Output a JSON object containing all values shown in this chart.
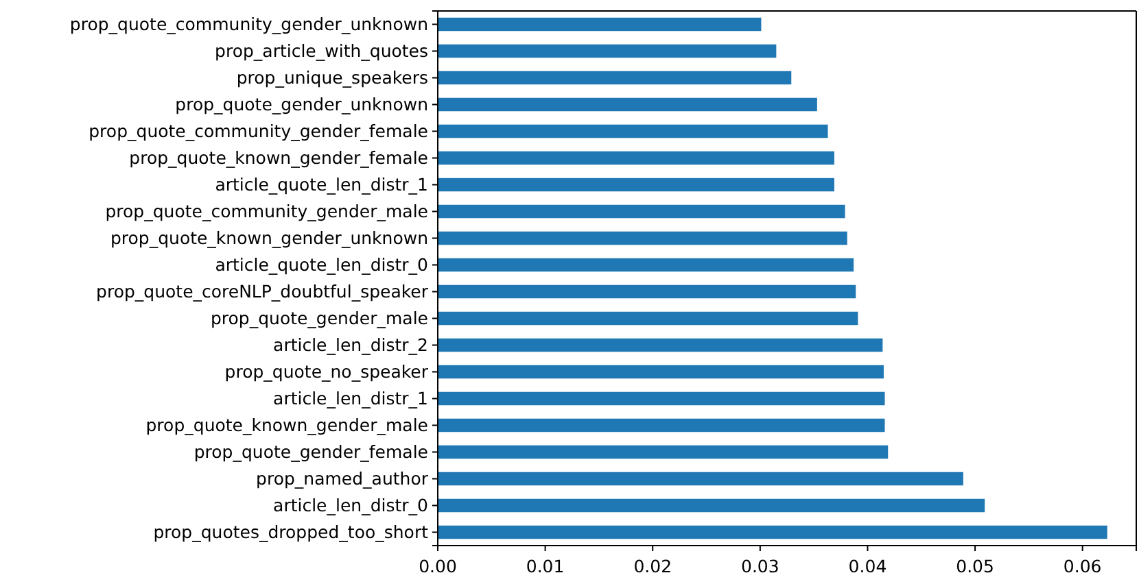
{
  "chart_data": {
    "type": "bar",
    "orientation": "horizontal",
    "categories": [
      "prop_quote_community_gender_unknown",
      "prop_article_with_quotes",
      "prop_unique_speakers",
      "prop_quote_gender_unknown",
      "prop_quote_community_gender_female",
      "prop_quote_known_gender_female",
      "article_quote_len_distr_1",
      "prop_quote_community_gender_male",
      "prop_quote_known_gender_unknown",
      "article_quote_len_distr_0",
      "prop_quote_coreNLP_doubtful_speaker",
      "prop_quote_gender_male",
      "article_len_distr_2",
      "prop_quote_no_speaker",
      "article_len_distr_1",
      "prop_quote_known_gender_male",
      "prop_quote_gender_female",
      "prop_named_author",
      "article_len_distr_0",
      "prop_quotes_dropped_too_short"
    ],
    "values": [
      0.0301,
      0.0315,
      0.0329,
      0.0353,
      0.0363,
      0.0369,
      0.0369,
      0.0379,
      0.0381,
      0.0387,
      0.0389,
      0.0391,
      0.0414,
      0.0415,
      0.0416,
      0.0416,
      0.0419,
      0.0489,
      0.0509,
      0.0623
    ],
    "color": "#1f77b4",
    "xlim": [
      0,
      0.065
    ],
    "xticks": [
      {
        "value": 0,
        "label": "0.00"
      },
      {
        "value": 0.01,
        "label": "0.01"
      },
      {
        "value": 0.02,
        "label": "0.02"
      },
      {
        "value": 0.03,
        "label": "0.03"
      },
      {
        "value": 0.04,
        "label": "0.04"
      },
      {
        "value": 0.05,
        "label": "0.05"
      },
      {
        "value": 0.06,
        "label": "0.06"
      }
    ],
    "grid": false
  }
}
